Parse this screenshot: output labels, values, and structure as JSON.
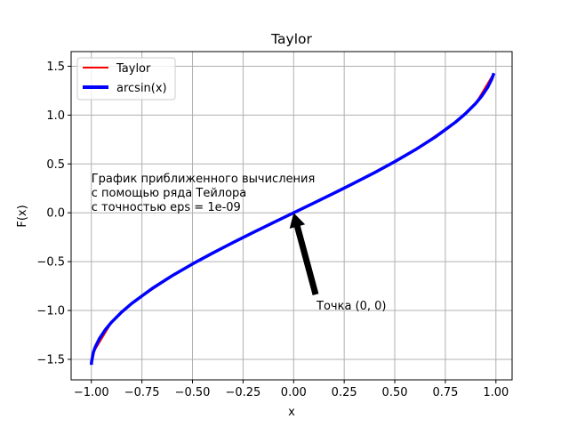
{
  "chart_data": {
    "type": "line",
    "title": "Taylor",
    "xlabel": "x",
    "ylabel": "F(x)",
    "xlim": [
      -1.1,
      1.08
    ],
    "ylim": [
      -1.71,
      1.65
    ],
    "x_ticks": [
      -1.0,
      -0.75,
      -0.5,
      -0.25,
      0.0,
      0.25,
      0.5,
      0.75,
      1.0
    ],
    "x_tick_labels": [
      "−1.00",
      "−0.75",
      "−0.50",
      "−0.25",
      "0.00",
      "0.25",
      "0.50",
      "0.75",
      "1.00"
    ],
    "y_ticks": [
      -1.5,
      -1.0,
      -0.5,
      0.0,
      0.5,
      1.0,
      1.5
    ],
    "y_tick_labels": [
      "−1.5",
      "−1.0",
      "−0.5",
      "0.0",
      "0.5",
      "1.0",
      "1.5"
    ],
    "grid": true,
    "legend_position": "top-left",
    "series": [
      {
        "name": "Taylor",
        "color": "#ff0000",
        "x": [
          -0.99,
          -0.9,
          -0.8,
          -0.6,
          -0.4,
          -0.2,
          0.0,
          0.2,
          0.4,
          0.6,
          0.8,
          0.9,
          0.99
        ],
        "y": [
          -1.429,
          -1.12,
          -0.927,
          -0.644,
          -0.412,
          -0.201,
          0.0,
          0.201,
          0.412,
          0.644,
          0.927,
          1.12,
          1.429
        ]
      },
      {
        "name": "arcsin(x)",
        "color": "#0000ff",
        "x": [
          -0.9999,
          -0.999,
          -0.99,
          -0.98,
          -0.96,
          -0.93,
          -0.9,
          -0.85,
          -0.8,
          -0.7,
          -0.6,
          -0.5,
          -0.4,
          -0.3,
          -0.2,
          -0.1,
          0.0,
          0.1,
          0.2,
          0.3,
          0.4,
          0.5,
          0.6,
          0.7,
          0.8,
          0.85,
          0.9,
          0.93,
          0.96,
          0.98,
          0.99
        ],
        "y": [
          -1.5567,
          -1.5261,
          -1.4293,
          -1.3705,
          -1.287,
          -1.1944,
          -1.1198,
          -1.016,
          -0.9273,
          -0.7754,
          -0.6435,
          -0.5236,
          -0.4115,
          -0.3047,
          -0.2014,
          -0.1002,
          0.0,
          0.1002,
          0.2014,
          0.3047,
          0.4115,
          0.5236,
          0.6435,
          0.7754,
          0.9273,
          1.016,
          1.1198,
          1.1944,
          1.287,
          1.3705,
          1.4293
        ]
      }
    ],
    "annotations": {
      "info_lines": [
        "График приближенного вычисления",
        "с помощью ряда Тейлора",
        "с точностью eps = 1e-09"
      ],
      "info_anchor": [
        -1.0,
        0.0
      ],
      "arrow_label": "Точка (0, 0)",
      "arrow_tip": [
        0.0,
        0.0
      ],
      "arrow_text_anchor": [
        0.1,
        -1.0
      ]
    }
  }
}
